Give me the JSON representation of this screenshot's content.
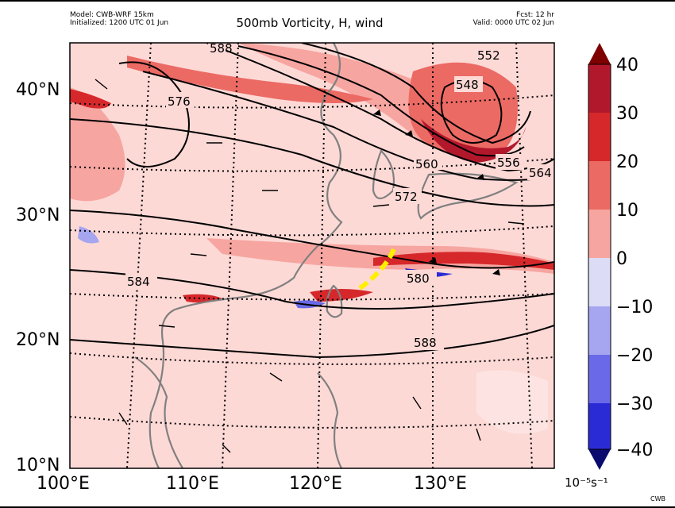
{
  "header": {
    "model": "Model: CWB-WRF 15km",
    "initialized": "Initialized: 1200 UTC 01 Jun",
    "title": "500mb Vorticity, H, wind",
    "forecast": "Fcst: 12 hr",
    "valid": "Valid: 0000 UTC 02 Jun"
  },
  "colorbar": {
    "ticks": [
      "40",
      "30",
      "20",
      "10",
      "0",
      "−10",
      "−20",
      "−30",
      "−40"
    ],
    "unit": "10⁻⁵s⁻¹",
    "colors": [
      "#b2182b",
      "#d6282b",
      "#ec6a64",
      "#f7a5a0",
      "#fdd9d6",
      "#dcdcf7",
      "#a5a5f0",
      "#6a6ae8",
      "#2b2bd6",
      "#0b0bb2"
    ]
  },
  "map": {
    "lon_labels": [
      "100°E",
      "110°E",
      "120°E",
      "130°E"
    ],
    "lat_labels": [
      "40°N",
      "30°N",
      "20°N",
      "10°N"
    ],
    "contour_labels": [
      "588",
      "576",
      "552",
      "548",
      "560",
      "556",
      "564",
      "572",
      "584",
      "580",
      "588"
    ],
    "background_color": "#fdd9d6",
    "contour_color": "#000000",
    "coast_color": "#808080",
    "highlight_color": "#ffee00"
  },
  "credit": "CWB"
}
